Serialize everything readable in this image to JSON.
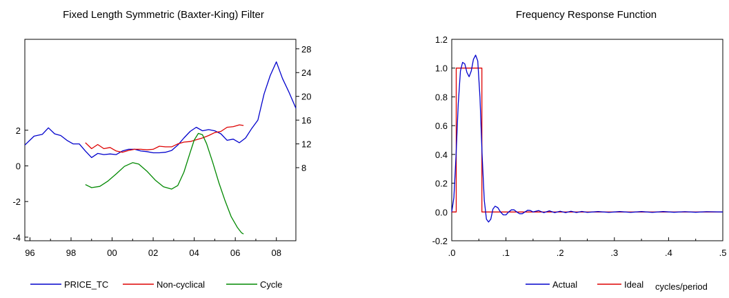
{
  "chart_data": [
    {
      "type": "line",
      "title": "Fixed Length Symmetric (Baxter-King) Filter",
      "xlabel": "",
      "x_range": [
        1995.75,
        2008.95
      ],
      "x_ticks": [
        {
          "value": 1996,
          "label": "96"
        },
        {
          "value": 1998,
          "label": "98"
        },
        {
          "value": 2000,
          "label": "00"
        },
        {
          "value": 2002,
          "label": "02"
        },
        {
          "value": 2004,
          "label": "04"
        },
        {
          "value": 2006,
          "label": "06"
        },
        {
          "value": 2008,
          "label": "08"
        }
      ],
      "left_axis": {
        "ylim": [
          -4.2,
          7.1
        ],
        "ticks": [
          "2",
          "0",
          "-2",
          "-4"
        ],
        "tick_values": [
          2,
          0,
          -2,
          -4
        ]
      },
      "right_axis": {
        "ylim": [
          -4.3,
          29.6
        ],
        "ticks": [
          "28",
          "24",
          "20",
          "16",
          "12",
          "8"
        ],
        "tick_values": [
          28,
          24,
          20,
          16,
          12,
          8
        ]
      },
      "legend_position": "bottom",
      "series": [
        {
          "name": "PRICE_TC",
          "axis": "right",
          "color": "#0000cc",
          "x": [
            1995.75,
            1996.2,
            1996.6,
            1996.9,
            1997.2,
            1997.5,
            1997.8,
            1998.1,
            1998.4,
            1998.7,
            1999.0,
            1999.3,
            1999.6,
            1999.9,
            2000.2,
            2000.5,
            2000.8,
            2001.1,
            2001.4,
            2001.7,
            2002.0,
            2002.3,
            2002.6,
            2002.9,
            2003.2,
            2003.5,
            2003.8,
            2004.1,
            2004.4,
            2004.7,
            2005.0,
            2005.3,
            2005.6,
            2005.9,
            2006.2,
            2006.5,
            2006.8,
            2007.1,
            2007.4,
            2007.7,
            2008.0,
            2008.3,
            2008.6,
            2008.95
          ],
          "values": [
            11.8,
            13.3,
            13.6,
            14.7,
            13.7,
            13.4,
            12.6,
            12.0,
            12.0,
            10.8,
            9.7,
            10.4,
            10.2,
            10.3,
            10.2,
            10.8,
            11.1,
            11.1,
            10.8,
            10.7,
            10.5,
            10.5,
            10.6,
            10.9,
            11.8,
            13.0,
            14.1,
            14.8,
            14.2,
            14.4,
            14.2,
            13.7,
            12.6,
            12.8,
            12.2,
            13.0,
            14.6,
            16.0,
            20.4,
            23.5,
            25.8,
            23.0,
            20.8,
            18.0
          ]
        },
        {
          "name": "Non-cyclical",
          "axis": "right",
          "color": "#dd0000",
          "x": [
            1998.7,
            1999.0,
            1999.3,
            1999.6,
            1999.9,
            2000.2,
            2000.5,
            2000.8,
            2001.1,
            2001.4,
            2001.7,
            2002.0,
            2002.3,
            2002.6,
            2002.9,
            2003.2,
            2003.5,
            2003.8,
            2004.1,
            2004.4,
            2004.7,
            2005.0,
            2005.3,
            2005.6,
            2005.9,
            2006.2,
            2006.4
          ],
          "values": [
            12.2,
            11.2,
            11.9,
            11.2,
            11.4,
            10.8,
            10.6,
            10.9,
            11.1,
            11.1,
            11.0,
            11.1,
            11.6,
            11.5,
            11.5,
            12.0,
            12.3,
            12.4,
            12.7,
            13.0,
            13.4,
            13.9,
            14.1,
            14.8,
            14.9,
            15.2,
            15.1
          ]
        },
        {
          "name": "Cycle",
          "axis": "left",
          "color": "#008800",
          "x": [
            1998.7,
            1999.0,
            1999.4,
            1999.8,
            2000.2,
            2000.6,
            2001.0,
            2001.3,
            2001.7,
            2002.1,
            2002.5,
            2002.9,
            2003.2,
            2003.5,
            2003.8,
            2004.0,
            2004.2,
            2004.4,
            2004.6,
            2004.9,
            2005.2,
            2005.5,
            2005.8,
            2006.1,
            2006.3,
            2006.4
          ],
          "values": [
            -1.05,
            -1.22,
            -1.15,
            -0.85,
            -0.45,
            -0.03,
            0.18,
            0.1,
            -0.3,
            -0.8,
            -1.17,
            -1.3,
            -1.1,
            -0.35,
            0.75,
            1.45,
            1.82,
            1.75,
            1.25,
            0.2,
            -0.95,
            -1.95,
            -2.85,
            -3.45,
            -3.75,
            -3.82
          ]
        }
      ]
    },
    {
      "type": "line",
      "title": "Frequency Response Function",
      "xlabel": "cycles/period",
      "xlim": [
        0,
        0.5
      ],
      "x_ticks": [
        ".0",
        ".1",
        ".2",
        ".3",
        ".4",
        ".5"
      ],
      "x_tick_values": [
        0,
        0.1,
        0.2,
        0.3,
        0.4,
        0.5
      ],
      "ylim": [
        -0.2,
        1.2
      ],
      "y_ticks": [
        "1.2",
        "1.0",
        "0.8",
        "0.6",
        "0.4",
        "0.2",
        "0.0",
        "-0.2"
      ],
      "y_tick_values": [
        1.2,
        1.0,
        0.8,
        0.6,
        0.4,
        0.2,
        0.0,
        -0.2
      ],
      "legend_position": "bottom",
      "series": [
        {
          "name": "Actual",
          "color": "#0000cc",
          "x": [
            0,
            0.004,
            0.008,
            0.012,
            0.016,
            0.02,
            0.024,
            0.028,
            0.032,
            0.036,
            0.04,
            0.044,
            0.048,
            0.052,
            0.056,
            0.06,
            0.064,
            0.068,
            0.072,
            0.076,
            0.08,
            0.085,
            0.09,
            0.095,
            0.1,
            0.105,
            0.11,
            0.115,
            0.12,
            0.125,
            0.13,
            0.135,
            0.14,
            0.145,
            0.15,
            0.16,
            0.17,
            0.18,
            0.19,
            0.2,
            0.21,
            0.22,
            0.23,
            0.24,
            0.25,
            0.27,
            0.29,
            0.31,
            0.33,
            0.35,
            0.37,
            0.39,
            0.41,
            0.43,
            0.45,
            0.47,
            0.5
          ],
          "values": [
            0.0,
            0.1,
            0.4,
            0.75,
            0.98,
            1.04,
            1.03,
            0.97,
            0.94,
            0.98,
            1.06,
            1.09,
            1.05,
            0.8,
            0.4,
            0.08,
            -0.05,
            -0.07,
            -0.05,
            0.02,
            0.04,
            0.03,
            0.0,
            -0.02,
            -0.02,
            0.0,
            0.015,
            0.015,
            0.0,
            -0.012,
            -0.012,
            0.0,
            0.012,
            0.01,
            0.0,
            0.01,
            -0.005,
            0.008,
            -0.005,
            0.005,
            -0.005,
            0.005,
            -0.004,
            0.004,
            -0.003,
            0.003,
            -0.003,
            0.003,
            -0.003,
            0.003,
            -0.003,
            0.003,
            -0.002,
            0.002,
            -0.002,
            0.002,
            0.0
          ]
        },
        {
          "name": "Ideal",
          "color": "#dd0000",
          "x": [
            0,
            0.0083,
            0.0083,
            0.0556,
            0.0556,
            0.5
          ],
          "values": [
            0,
            0,
            1,
            1,
            0,
            0
          ]
        }
      ]
    }
  ]
}
